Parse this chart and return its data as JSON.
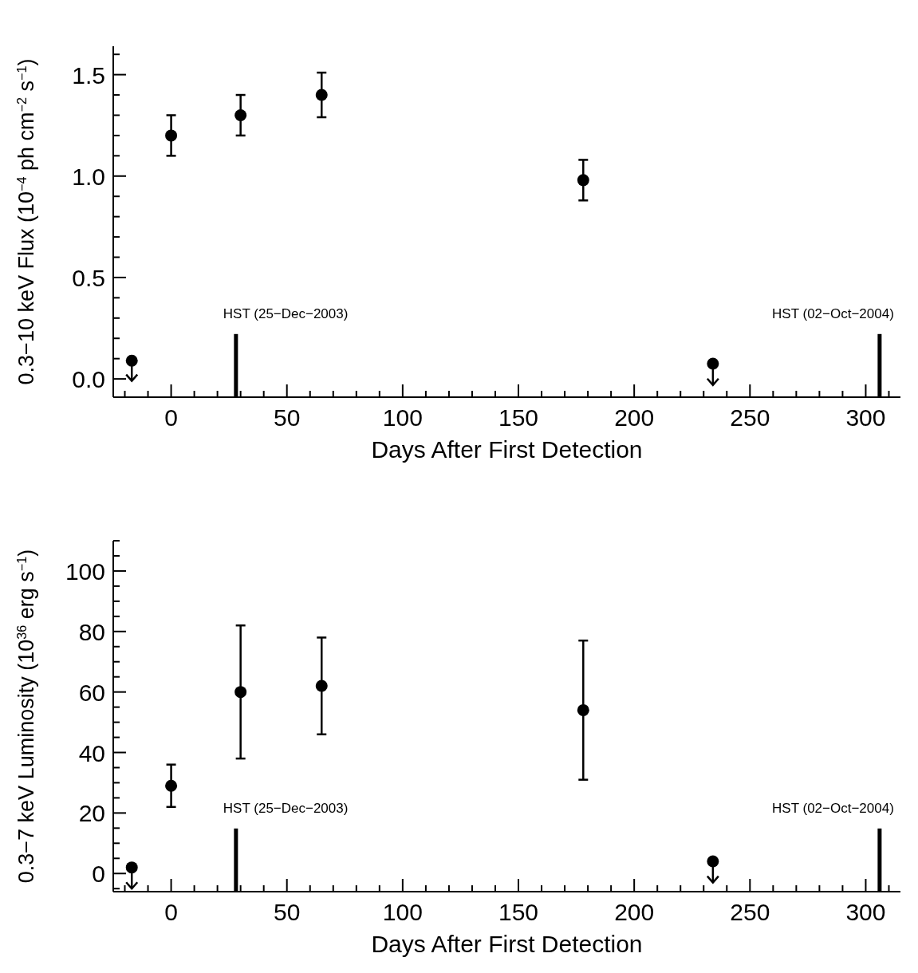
{
  "chart_data": [
    {
      "type": "scatter",
      "xlabel": "Days After First Detection",
      "ylabel": "0.3−10 keV Flux (10$^{−4}$ ph cm$^{−2}$ s$^{−1}$)",
      "x": [
        -17,
        0,
        30,
        65,
        178,
        234
      ],
      "color": "#000000",
      "marker": "circle",
      "values": [
        0.09,
        1.2,
        1.3,
        1.4,
        0.98,
        0.075
      ],
      "errors": [
        [
          -0.01,
          0.09
        ],
        [
          1.1,
          1.3
        ],
        [
          1.2,
          1.4
        ],
        [
          1.29,
          1.51
        ],
        [
          0.88,
          1.08
        ],
        [
          -0.03,
          0.075
        ]
      ],
      "xlim": [
        -25,
        315
      ],
      "ylim": [
        -0.09,
        1.64
      ],
      "xticks": [
        {
          "value": -20,
          "label": null
        },
        {
          "value": -10,
          "label": null
        },
        0,
        {
          "value": 10,
          "label": null
        },
        {
          "value": 20,
          "label": null
        },
        {
          "value": 30,
          "label": null
        },
        {
          "value": 40,
          "label": null
        },
        50,
        {
          "value": 60,
          "label": null
        },
        {
          "value": 70,
          "label": null
        },
        {
          "value": 80,
          "label": null
        },
        {
          "value": 90,
          "label": null
        },
        100,
        {
          "value": 110,
          "label": null
        },
        {
          "value": 120,
          "label": null
        },
        {
          "value": 130,
          "label": null
        },
        {
          "value": 140,
          "label": null
        },
        150,
        {
          "value": 160,
          "label": null
        },
        {
          "value": 170,
          "label": null
        },
        {
          "value": 180,
          "label": null
        },
        {
          "value": 190,
          "label": null
        },
        200,
        {
          "value": 210,
          "label": null
        },
        {
          "value": 220,
          "label": null
        },
        {
          "value": 230,
          "label": null
        },
        {
          "value": 240,
          "label": null
        },
        250,
        {
          "value": 260,
          "label": null
        },
        {
          "value": 270,
          "label": null
        },
        {
          "value": 280,
          "label": null
        },
        {
          "value": 290,
          "label": null
        },
        300,
        {
          "value": 310,
          "label": null
        }
      ],
      "yticks": [
        {
          "value": 0,
          "label": "0.0"
        },
        {
          "value": 0.1,
          "label": null
        },
        {
          "value": 0.2,
          "label": null
        },
        {
          "value": 0.3,
          "label": null
        },
        {
          "value": 0.4,
          "label": null
        },
        0.5,
        {
          "value": 0.6,
          "label": null
        },
        {
          "value": 0.7,
          "label": null
        },
        {
          "value": 0.8,
          "label": null
        },
        {
          "value": 0.9,
          "label": null
        },
        {
          "value": 1,
          "label": "1.0"
        },
        {
          "value": 1.1,
          "label": null
        },
        {
          "value": 1.2,
          "label": null
        },
        {
          "value": 1.3,
          "label": null
        },
        {
          "value": 1.4,
          "label": null
        },
        1.5,
        {
          "value": 1.6,
          "label": null
        }
      ],
      "ref_lines": [
        {
          "axis": "x",
          "value": 28,
          "label": "HST (25−Dec−2003)",
          "color": "#000000"
        },
        {
          "axis": "x",
          "value": 306,
          "label": "HST (02−Oct−2004)",
          "color": "#000000"
        }
      ]
    },
    {
      "type": "scatter",
      "xlabel": "Days After First Detection",
      "ylabel": "0.3−7 keV Luminosity (10$^{36}$ erg s$^{−1}$)",
      "x": [
        -17,
        0,
        30,
        65,
        178,
        234
      ],
      "color": "#000000",
      "marker": "circle",
      "values": [
        2,
        29,
        60,
        62,
        54,
        4
      ],
      "errors": [
        [
          -5,
          2
        ],
        [
          22,
          36
        ],
        [
          38,
          82
        ],
        [
          46,
          78
        ],
        [
          31,
          77
        ],
        [
          -3,
          4
        ]
      ],
      "xlim": [
        -25,
        315
      ],
      "ylim": [
        -6,
        110
      ],
      "xticks": [
        {
          "value": -20,
          "label": null
        },
        {
          "value": -10,
          "label": null
        },
        0,
        {
          "value": 10,
          "label": null
        },
        {
          "value": 20,
          "label": null
        },
        {
          "value": 30,
          "label": null
        },
        {
          "value": 40,
          "label": null
        },
        50,
        {
          "value": 60,
          "label": null
        },
        {
          "value": 70,
          "label": null
        },
        {
          "value": 80,
          "label": null
        },
        {
          "value": 90,
          "label": null
        },
        100,
        {
          "value": 110,
          "label": null
        },
        {
          "value": 120,
          "label": null
        },
        {
          "value": 130,
          "label": null
        },
        {
          "value": 140,
          "label": null
        },
        150,
        {
          "value": 160,
          "label": null
        },
        {
          "value": 170,
          "label": null
        },
        {
          "value": 180,
          "label": null
        },
        {
          "value": 190,
          "label": null
        },
        200,
        {
          "value": 210,
          "label": null
        },
        {
          "value": 220,
          "label": null
        },
        {
          "value": 230,
          "label": null
        },
        {
          "value": 240,
          "label": null
        },
        250,
        {
          "value": 260,
          "label": null
        },
        {
          "value": 270,
          "label": null
        },
        {
          "value": 280,
          "label": null
        },
        {
          "value": 290,
          "label": null
        },
        300,
        {
          "value": 310,
          "label": null
        }
      ],
      "yticks": [
        {
          "value": -5,
          "label": null
        },
        0,
        {
          "value": 5,
          "label": null
        },
        {
          "value": 10,
          "label": null
        },
        {
          "value": 15,
          "label": null
        },
        20,
        {
          "value": 25,
          "label": null
        },
        {
          "value": 30,
          "label": null
        },
        {
          "value": 35,
          "label": null
        },
        40,
        {
          "value": 45,
          "label": null
        },
        {
          "value": 50,
          "label": null
        },
        {
          "value": 55,
          "label": null
        },
        60,
        {
          "value": 65,
          "label": null
        },
        {
          "value": 70,
          "label": null
        },
        {
          "value": 75,
          "label": null
        },
        80,
        {
          "value": 85,
          "label": null
        },
        {
          "value": 90,
          "label": null
        },
        {
          "value": 95,
          "label": null
        },
        100,
        {
          "value": 105,
          "label": null
        },
        {
          "value": 110,
          "label": null
        }
      ],
      "ref_lines": [
        {
          "axis": "x",
          "value": 28,
          "label": "HST (25−Dec−2003)",
          "color": "#000000"
        },
        {
          "axis": "x",
          "value": 306,
          "label": "HST (02−Oct−2004)",
          "color": "#000000"
        }
      ]
    }
  ]
}
